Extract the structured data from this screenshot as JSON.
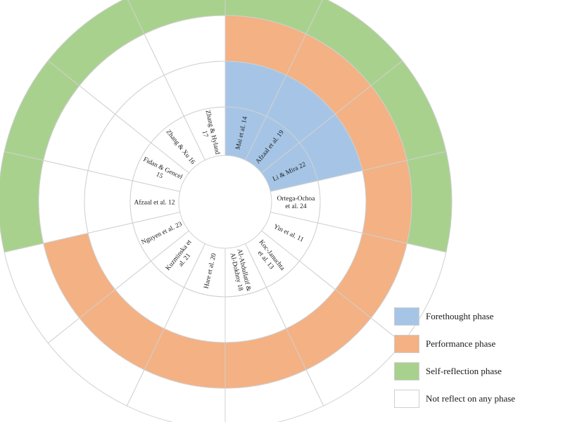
{
  "chart_data": {
    "type": "sunburst",
    "title": "",
    "rings": [
      "Forethought phase",
      "Performance phase",
      "Self-reflection phase"
    ],
    "categories": [
      {
        "label": [
          "Mai et al. 14"
        ],
        "phases": [
          "Forethought phase",
          "Performance phase",
          "Self-reflection phase"
        ]
      },
      {
        "label": [
          "Afzaal et al. 19"
        ],
        "phases": [
          "Forethought phase",
          "Performance phase",
          "Self-reflection phase"
        ]
      },
      {
        "label": [
          "Li & Mira 22"
        ],
        "phases": [
          "Forethought phase",
          "Performance phase",
          "Self-reflection phase"
        ]
      },
      {
        "label": [
          "Ortega-Ochoa",
          "et al. 24"
        ],
        "phases": [
          "Performance phase",
          "Self-reflection phase"
        ]
      },
      {
        "label": [
          "Yin et al. 11"
        ],
        "phases": [
          "Performance phase"
        ]
      },
      {
        "label": [
          "Koc-Januchta",
          "et al. 13"
        ],
        "phases": [
          "Performance phase"
        ]
      },
      {
        "label": [
          "Al-Abdullatif &",
          "Al-Dokhny 18"
        ],
        "phases": [
          "Performance phase"
        ]
      },
      {
        "label": [
          "Hare et al. 20"
        ],
        "phases": [
          "Performance phase"
        ]
      },
      {
        "label": [
          "Kuzminska et",
          "al. 21"
        ],
        "phases": [
          "Performance phase"
        ]
      },
      {
        "label": [
          "Nguyen et al. 23"
        ],
        "phases": [
          "Performance phase"
        ]
      },
      {
        "label": [
          "Afzaal et al. 12"
        ],
        "phases": [
          "Self-reflection phase"
        ]
      },
      {
        "label": [
          "Fidan & Gencel",
          "15"
        ],
        "phases": [
          "Self-reflection phase"
        ]
      },
      {
        "label": [
          "Zhang & Xu 16"
        ],
        "phases": [
          "Self-reflection phase"
        ]
      },
      {
        "label": [
          "Zhang & Hyland",
          "17"
        ],
        "phases": [
          "Self-reflection phase"
        ]
      }
    ],
    "legend": [
      {
        "label": "Forethought phase",
        "color": "#a6c5e6"
      },
      {
        "label": "Performance phase",
        "color": "#f4b183"
      },
      {
        "label": "Self-reflection phase",
        "color": "#a9d18e"
      },
      {
        "label": "Not reflect on any phase",
        "color": "#ffffff"
      }
    ],
    "legend_position": "bottom-right"
  }
}
